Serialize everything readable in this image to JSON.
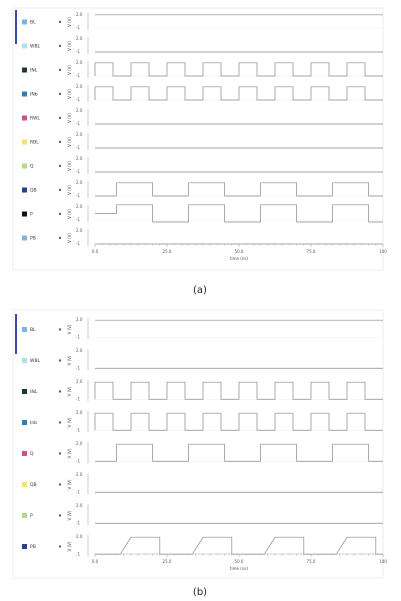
{
  "panels": [
    {
      "signals": [
        "BL",
        "WBL",
        "INL",
        "INb",
        "RWL",
        "RBL",
        "Q",
        "QB",
        "P",
        "PB"
      ],
      "y_axis_label": "V (V)",
      "y_ticks": [
        "2.0",
        "-1"
      ],
      "x_ticks": [
        "0.0",
        "25.0",
        "50.0",
        "75.0",
        "100"
      ],
      "x_axis_label": "time (ns)",
      "caption": "(a)"
    },
    {
      "signals": [
        "BL",
        "WBL",
        "INL",
        "Inb",
        "Q",
        "QB",
        "P",
        "PB"
      ],
      "y_axis_label": "V (V)",
      "y_ticks": [
        "2.0",
        "-1"
      ],
      "x_ticks": [
        "0.0",
        "25.0",
        "50.0",
        "75.0",
        "100"
      ],
      "x_axis_label": "time (ns)",
      "caption": "(b)"
    }
  ]
}
